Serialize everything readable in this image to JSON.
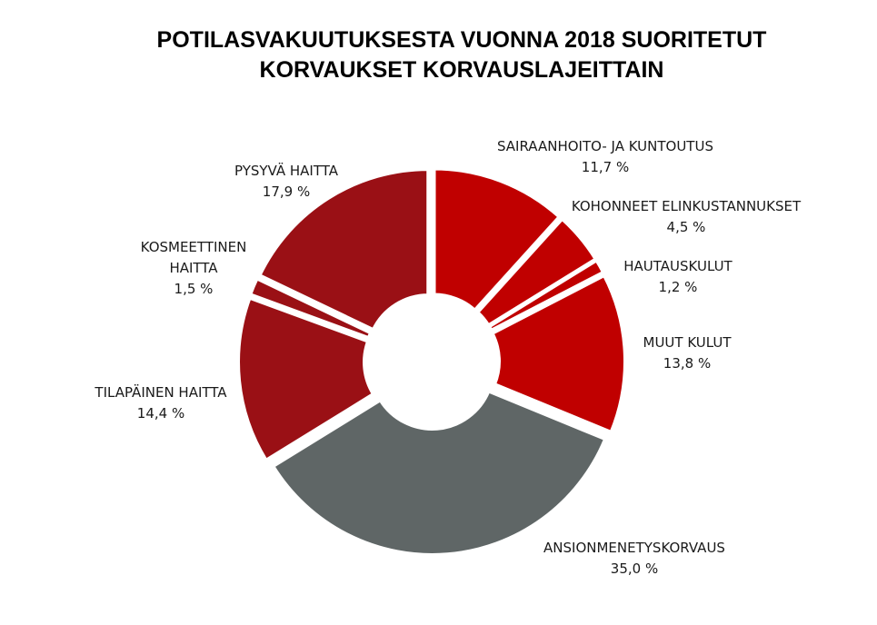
{
  "chart_data": {
    "type": "pie",
    "donut": true,
    "title": [
      "POTILASVAKUUTUKSESTA VUONNA 2018 SUORITETUT",
      "KORVAUKSET KORVAUSLAJEITTAIN"
    ],
    "legend": "none",
    "slices": [
      {
        "label": [
          "SAIRAANHOITO- JA KUNTOUTUS"
        ],
        "value": 11.7,
        "value_text": "11,7 %",
        "color": "#c00000"
      },
      {
        "label": [
          "KOHONNEET ELINKUSTANNUKSET"
        ],
        "value": 4.5,
        "value_text": "4,5 %",
        "color": "#c00000"
      },
      {
        "label": [
          "HAUTAUSKULUT"
        ],
        "value": 1.2,
        "value_text": "1,2 %",
        "color": "#c00000"
      },
      {
        "label": [
          "MUUT KULUT"
        ],
        "value": 13.8,
        "value_text": "13,8 %",
        "color": "#c00000"
      },
      {
        "label": [
          "ANSIONMENETYSKORVAUS"
        ],
        "value": 35.0,
        "value_text": "35,0 %",
        "color": "#5f6666"
      },
      {
        "label": [
          "TILAPÄINEN HAITTA"
        ],
        "value": 14.4,
        "value_text": "14,4 %",
        "color": "#9a1015"
      },
      {
        "label": [
          "KOSMEETTINEN",
          "HAITTA"
        ],
        "value": 1.5,
        "value_text": "1,5 %",
        "color": "#9a1015"
      },
      {
        "label": [
          "PYSYVÄ HAITTA"
        ],
        "value": 17.9,
        "value_text": "17,9 %",
        "color": "#9a1015"
      }
    ]
  }
}
